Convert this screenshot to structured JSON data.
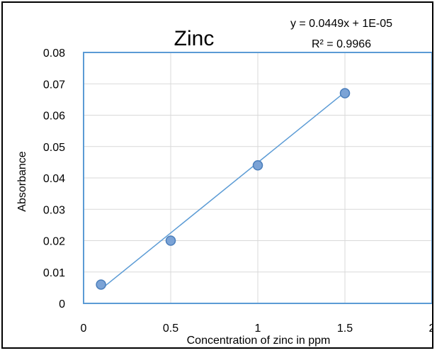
{
  "chart_data": {
    "type": "scatter",
    "title": "Zinc",
    "xlabel": "Concentration of zinc in ppm",
    "ylabel": "Absorbance",
    "xlim": [
      0,
      2
    ],
    "ylim": [
      0,
      0.08
    ],
    "x_ticks": [
      "0",
      "0.5",
      "1",
      "1.5",
      "2"
    ],
    "y_ticks": [
      "0",
      "0.01",
      "0.02",
      "0.03",
      "0.04",
      "0.05",
      "0.06",
      "0.07",
      "0.08"
    ],
    "grid": true,
    "legend": "none",
    "series": [
      {
        "x": [
          0.1,
          0.5,
          1,
          1.5
        ],
        "y": [
          0.006,
          0.02,
          0.044,
          0.067
        ],
        "marker_color": "#7ba3d6",
        "marker_edge": "#4a7ebb"
      }
    ],
    "trendline": {
      "type": "linear",
      "slope": 0.0449,
      "intercept": 1e-05,
      "color": "#5b9bd5",
      "equation": "y = 0.0449x + 1E-05",
      "r_squared": "R² = 0.9966"
    },
    "plot_border_color": "#5b9bd5",
    "grid_color": "#d9d9d9"
  }
}
